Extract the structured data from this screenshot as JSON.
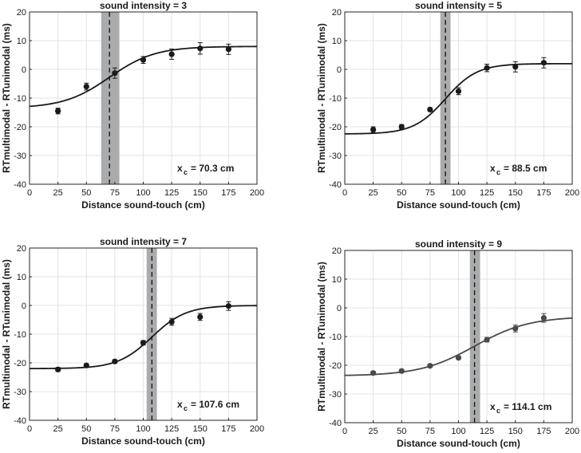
{
  "chart_data": [
    {
      "type": "scatter",
      "title": "sound intensity = 3",
      "xlabel": "Distance sound-touch (cm)",
      "ylabel": "RTmultimodal - RTunimodal (ms)",
      "xlim": [
        0,
        200
      ],
      "ylim": [
        -40,
        20
      ],
      "xticks": [
        0,
        25,
        50,
        75,
        100,
        125,
        150,
        175,
        200
      ],
      "yticks": [
        -40,
        -30,
        -20,
        -10,
        0,
        10,
        20
      ],
      "x": [
        25,
        50,
        75,
        100,
        125,
        150,
        175
      ],
      "values": [
        -14.5,
        -6.0,
        -1.3,
        3.3,
        5.3,
        7.3,
        7.0
      ],
      "errors": [
        1.0,
        1.2,
        1.8,
        1.2,
        1.8,
        2.0,
        1.8
      ],
      "fit": {
        "min": -13.5,
        "max": 8.0,
        "center": 70.3,
        "slope": 20
      },
      "xc_label": "x",
      "xc_sub": "c",
      "xc_value": "= 70.3 cm",
      "band": [
        63,
        79
      ],
      "color": "#1a1a1a"
    },
    {
      "type": "scatter",
      "title": "sound intensity = 5",
      "xlabel": "Distance sound-touch (cm)",
      "ylabel": "RTmultimodal - RTunimodal (ms)",
      "xlim": [
        0,
        200
      ],
      "ylim": [
        -40,
        20
      ],
      "xticks": [
        0,
        25,
        50,
        75,
        100,
        125,
        150,
        175,
        200
      ],
      "yticks": [
        -40,
        -30,
        -20,
        -10,
        0,
        10,
        20
      ],
      "x": [
        25,
        50,
        75,
        100,
        125,
        150,
        175
      ],
      "values": [
        -21.0,
        -20.0,
        -14.0,
        -7.6,
        0.5,
        0.9,
        2.3
      ],
      "errors": [
        1.0,
        0.8,
        0.6,
        1.2,
        1.3,
        1.8,
        1.8
      ],
      "fit": {
        "min": -22.5,
        "max": 2.0,
        "center": 88.5,
        "slope": 14
      },
      "xc_label": "x",
      "xc_sub": "c",
      "xc_value": "= 88.5 cm",
      "band": [
        84,
        93
      ],
      "color": "#1a1a1a"
    },
    {
      "type": "scatter",
      "title": "sound intensity = 7",
      "xlabel": "Distance sound-touch (cm)",
      "ylabel": "RTmultimodal - RTunimodal (ms)",
      "xlim": [
        0,
        200
      ],
      "ylim": [
        -40,
        20
      ],
      "xticks": [
        0,
        25,
        50,
        75,
        100,
        125,
        150,
        175,
        200
      ],
      "yticks": [
        -40,
        -30,
        -20,
        -10,
        0,
        10,
        20
      ],
      "x": [
        25,
        50,
        75,
        100,
        125,
        150,
        175
      ],
      "values": [
        -22.3,
        -20.9,
        -19.5,
        -13.0,
        -5.7,
        -4.0,
        -0.2
      ],
      "errors": [
        0.7,
        0.6,
        0.6,
        0.8,
        1.2,
        1.2,
        1.5
      ],
      "fit": {
        "min": -22.0,
        "max": 0.0,
        "center": 107.6,
        "slope": 15
      },
      "xc_label": "x",
      "xc_sub": "c",
      "xc_value": "= 107.6 cm",
      "band": [
        103,
        112
      ],
      "color": "#1a1a1a"
    },
    {
      "type": "scatter",
      "title": "sound intensity = 9",
      "xlabel": "Distance sound-touch (cm)",
      "ylabel": "RTmultimodal - RTunimodal (ms)",
      "xlim": [
        0,
        200
      ],
      "ylim": [
        -40,
        20
      ],
      "xticks": [
        0,
        25,
        50,
        75,
        100,
        125,
        150,
        175,
        200
      ],
      "yticks": [
        -40,
        -30,
        -20,
        -10,
        0,
        10,
        20
      ],
      "x": [
        25,
        50,
        75,
        100,
        125,
        150,
        175
      ],
      "values": [
        -22.7,
        -22.0,
        -20.2,
        -17.4,
        -11.1,
        -7.2,
        -3.5
      ],
      "errors": [
        0.6,
        0.6,
        0.6,
        0.6,
        0.8,
        1.2,
        1.5
      ],
      "fit": {
        "min": -23.7,
        "max": -3.0,
        "center": 114.1,
        "slope": 24
      },
      "xc_label": "x",
      "xc_sub": "c",
      "xc_value": "= 114.1 cm",
      "band": [
        110,
        119
      ],
      "color": "#4a4a4a"
    }
  ]
}
